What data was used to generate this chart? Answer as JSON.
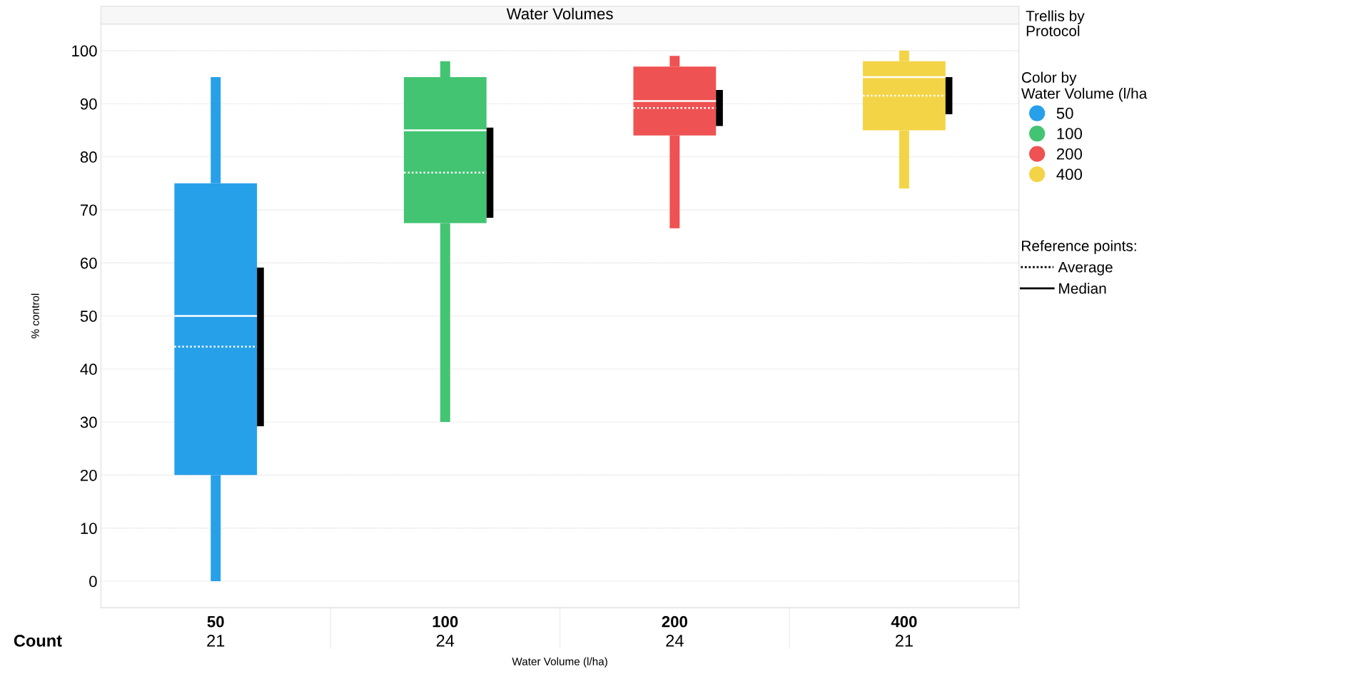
{
  "chart_data": {
    "type": "box",
    "title": "Water Volumes",
    "xlabel": "Water Volume (l/ha)",
    "ylabel": "% control",
    "legend_title": "Color by\nWater Volume (l/ha",
    "categories": [
      "50",
      "100",
      "200",
      "400"
    ],
    "series": [
      {
        "name": "50",
        "color": "#27a0ea",
        "boxes": [
          {
            "low": 0,
            "q1": 20,
            "median": 50,
            "q3": 75,
            "high": 95,
            "mean": 44.2
          },
          null,
          null,
          null
        ]
      },
      {
        "name": "100",
        "color": "#43c472",
        "boxes": [
          null,
          {
            "low": 30,
            "q1": 67.5,
            "median": 85,
            "q3": 95,
            "high": 98,
            "mean": 77
          },
          null,
          null
        ]
      },
      {
        "name": "200",
        "color": "#ef5252",
        "boxes": [
          null,
          null,
          {
            "low": 66.5,
            "q1": 84,
            "median": 90.5,
            "q3": 97,
            "high": 99,
            "mean": 89.2
          },
          null
        ]
      },
      {
        "name": "400",
        "color": "#f3d447",
        "boxes": [
          null,
          null,
          null,
          {
            "low": 74,
            "q1": 85,
            "median": 95,
            "q3": 98,
            "high": 100,
            "mean": 91.5
          }
        ]
      },
      {
        "type": "bar",
        "color": "#000000",
        "base": [
          29.2,
          68.5,
          85.8,
          88
        ],
        "values": [
          29.9,
          17,
          6.8,
          7
        ]
      }
    ],
    "ylim": [
      -5,
      105
    ],
    "yticks": [
      0,
      10,
      20,
      30,
      40,
      50,
      60,
      70,
      80,
      90,
      100
    ],
    "grid": "y",
    "legend": "right",
    "annotations": [
      "Count",
      "21",
      "24",
      "24",
      "21",
      "Trellis by\nProtocol",
      "Reference points:",
      "Average",
      "Median"
    ]
  }
}
